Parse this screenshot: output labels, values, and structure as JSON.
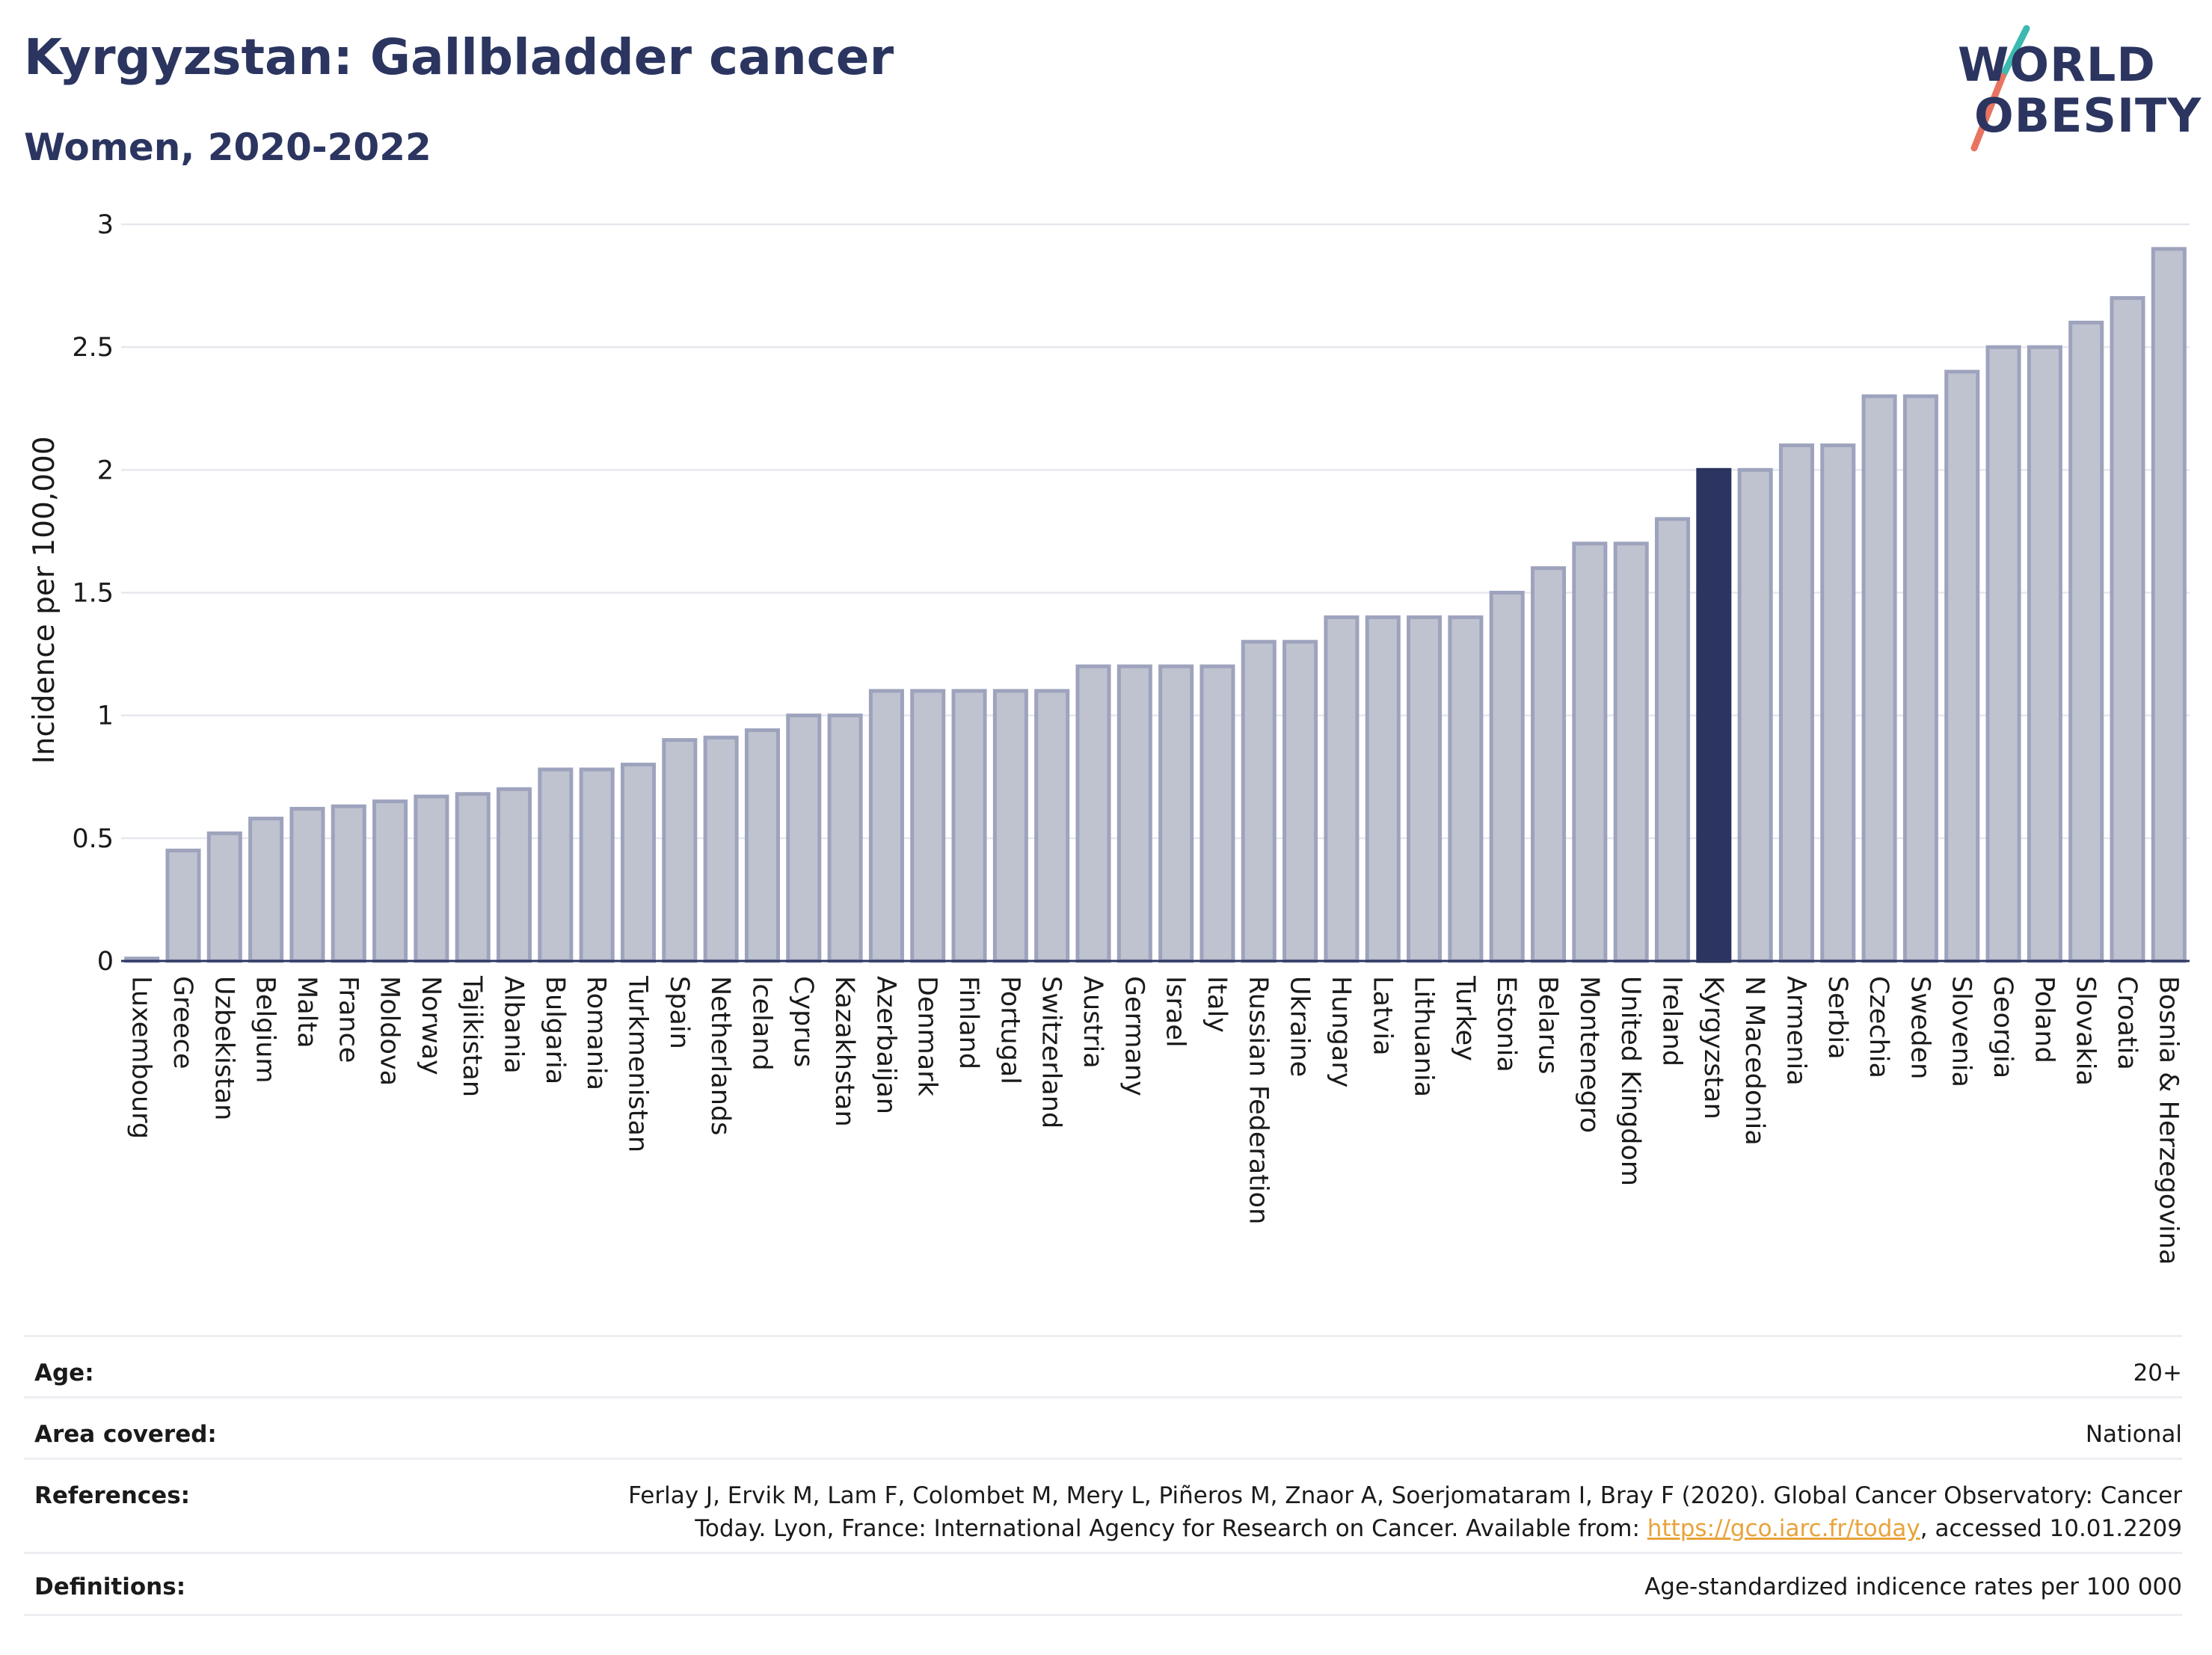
{
  "header": {
    "title": "Kyrgyzstan: Gallbladder cancer",
    "subtitle": "Women, 2020-2022"
  },
  "logo": {
    "line1": "WORLD",
    "line2": "OBESITY",
    "icon": "world-obesity-logo"
  },
  "colors": {
    "highlight": "#2b3560",
    "bar_fill": "#bfc3d0",
    "bar_stroke": "#9ea3bd",
    "brand_teal": "#3cb9b0",
    "brand_coral": "#e87461",
    "link": "#e8a33a"
  },
  "chart_data": {
    "type": "bar",
    "ylabel": "Incidence per 100,000",
    "xlabel": "",
    "ylim": [
      0,
      3
    ],
    "yticks": [
      0,
      0.5,
      1,
      1.5,
      2,
      2.5,
      3
    ],
    "ytick_labels": [
      "0",
      "0.5",
      "1",
      "1.5",
      "2",
      "2.5",
      "3"
    ],
    "grid": true,
    "highlight": "Kyrgyzstan",
    "categories": [
      "Luxembourg",
      "Greece",
      "Uzbekistan",
      "Belgium",
      "Malta",
      "France",
      "Moldova",
      "Norway",
      "Tajikistan",
      "Albania",
      "Bulgaria",
      "Romania",
      "Turkmenistan",
      "Spain",
      "Netherlands",
      "Iceland",
      "Cyprus",
      "Kazakhstan",
      "Azerbaijan",
      "Denmark",
      "Finland",
      "Portugal",
      "Switzerland",
      "Austria",
      "Germany",
      "Israel",
      "Italy",
      "Russian Federation",
      "Ukraine",
      "Hungary",
      "Latvia",
      "Lithuania",
      "Turkey",
      "Estonia",
      "Belarus",
      "Montenegro",
      "United Kingdom",
      "Ireland",
      "Kyrgyzstan",
      "N Macedonia",
      "Armenia",
      "Serbia",
      "Czechia",
      "Sweden",
      "Slovenia",
      "Georgia",
      "Poland",
      "Slovakia",
      "Croatia",
      "Bosnia & Herzegovina"
    ],
    "values": [
      0.01,
      0.45,
      0.52,
      0.58,
      0.62,
      0.63,
      0.65,
      0.67,
      0.68,
      0.7,
      0.78,
      0.78,
      0.8,
      0.9,
      0.91,
      0.94,
      1.0,
      1.0,
      1.1,
      1.1,
      1.1,
      1.1,
      1.1,
      1.2,
      1.2,
      1.2,
      1.2,
      1.3,
      1.3,
      1.4,
      1.4,
      1.4,
      1.4,
      1.5,
      1.6,
      1.7,
      1.7,
      1.8,
      2.0,
      2.0,
      2.1,
      2.1,
      2.3,
      2.3,
      2.4,
      2.5,
      2.5,
      2.6,
      2.7,
      2.9
    ]
  },
  "info": {
    "age_label": "Age:",
    "age_value": "20+",
    "area_label": "Area covered:",
    "area_value": "National",
    "references_label": "References:",
    "references_line1": "Ferlay J, Ervik M, Lam F, Colombet M, Mery L, Piñeros M, Znaor A, Soerjomataram I, Bray F (2020). Global Cancer Observatory: Cancer",
    "references_line2_pre": "Today. Lyon, France: International Agency for Research on Cancer. Available from: ",
    "references_link": "https://gco.iarc.fr/today",
    "references_line2_post": ", accessed 10.01.2209",
    "definitions_label": "Definitions:",
    "definitions_value": "Age-standardized indicence rates per 100 000"
  }
}
